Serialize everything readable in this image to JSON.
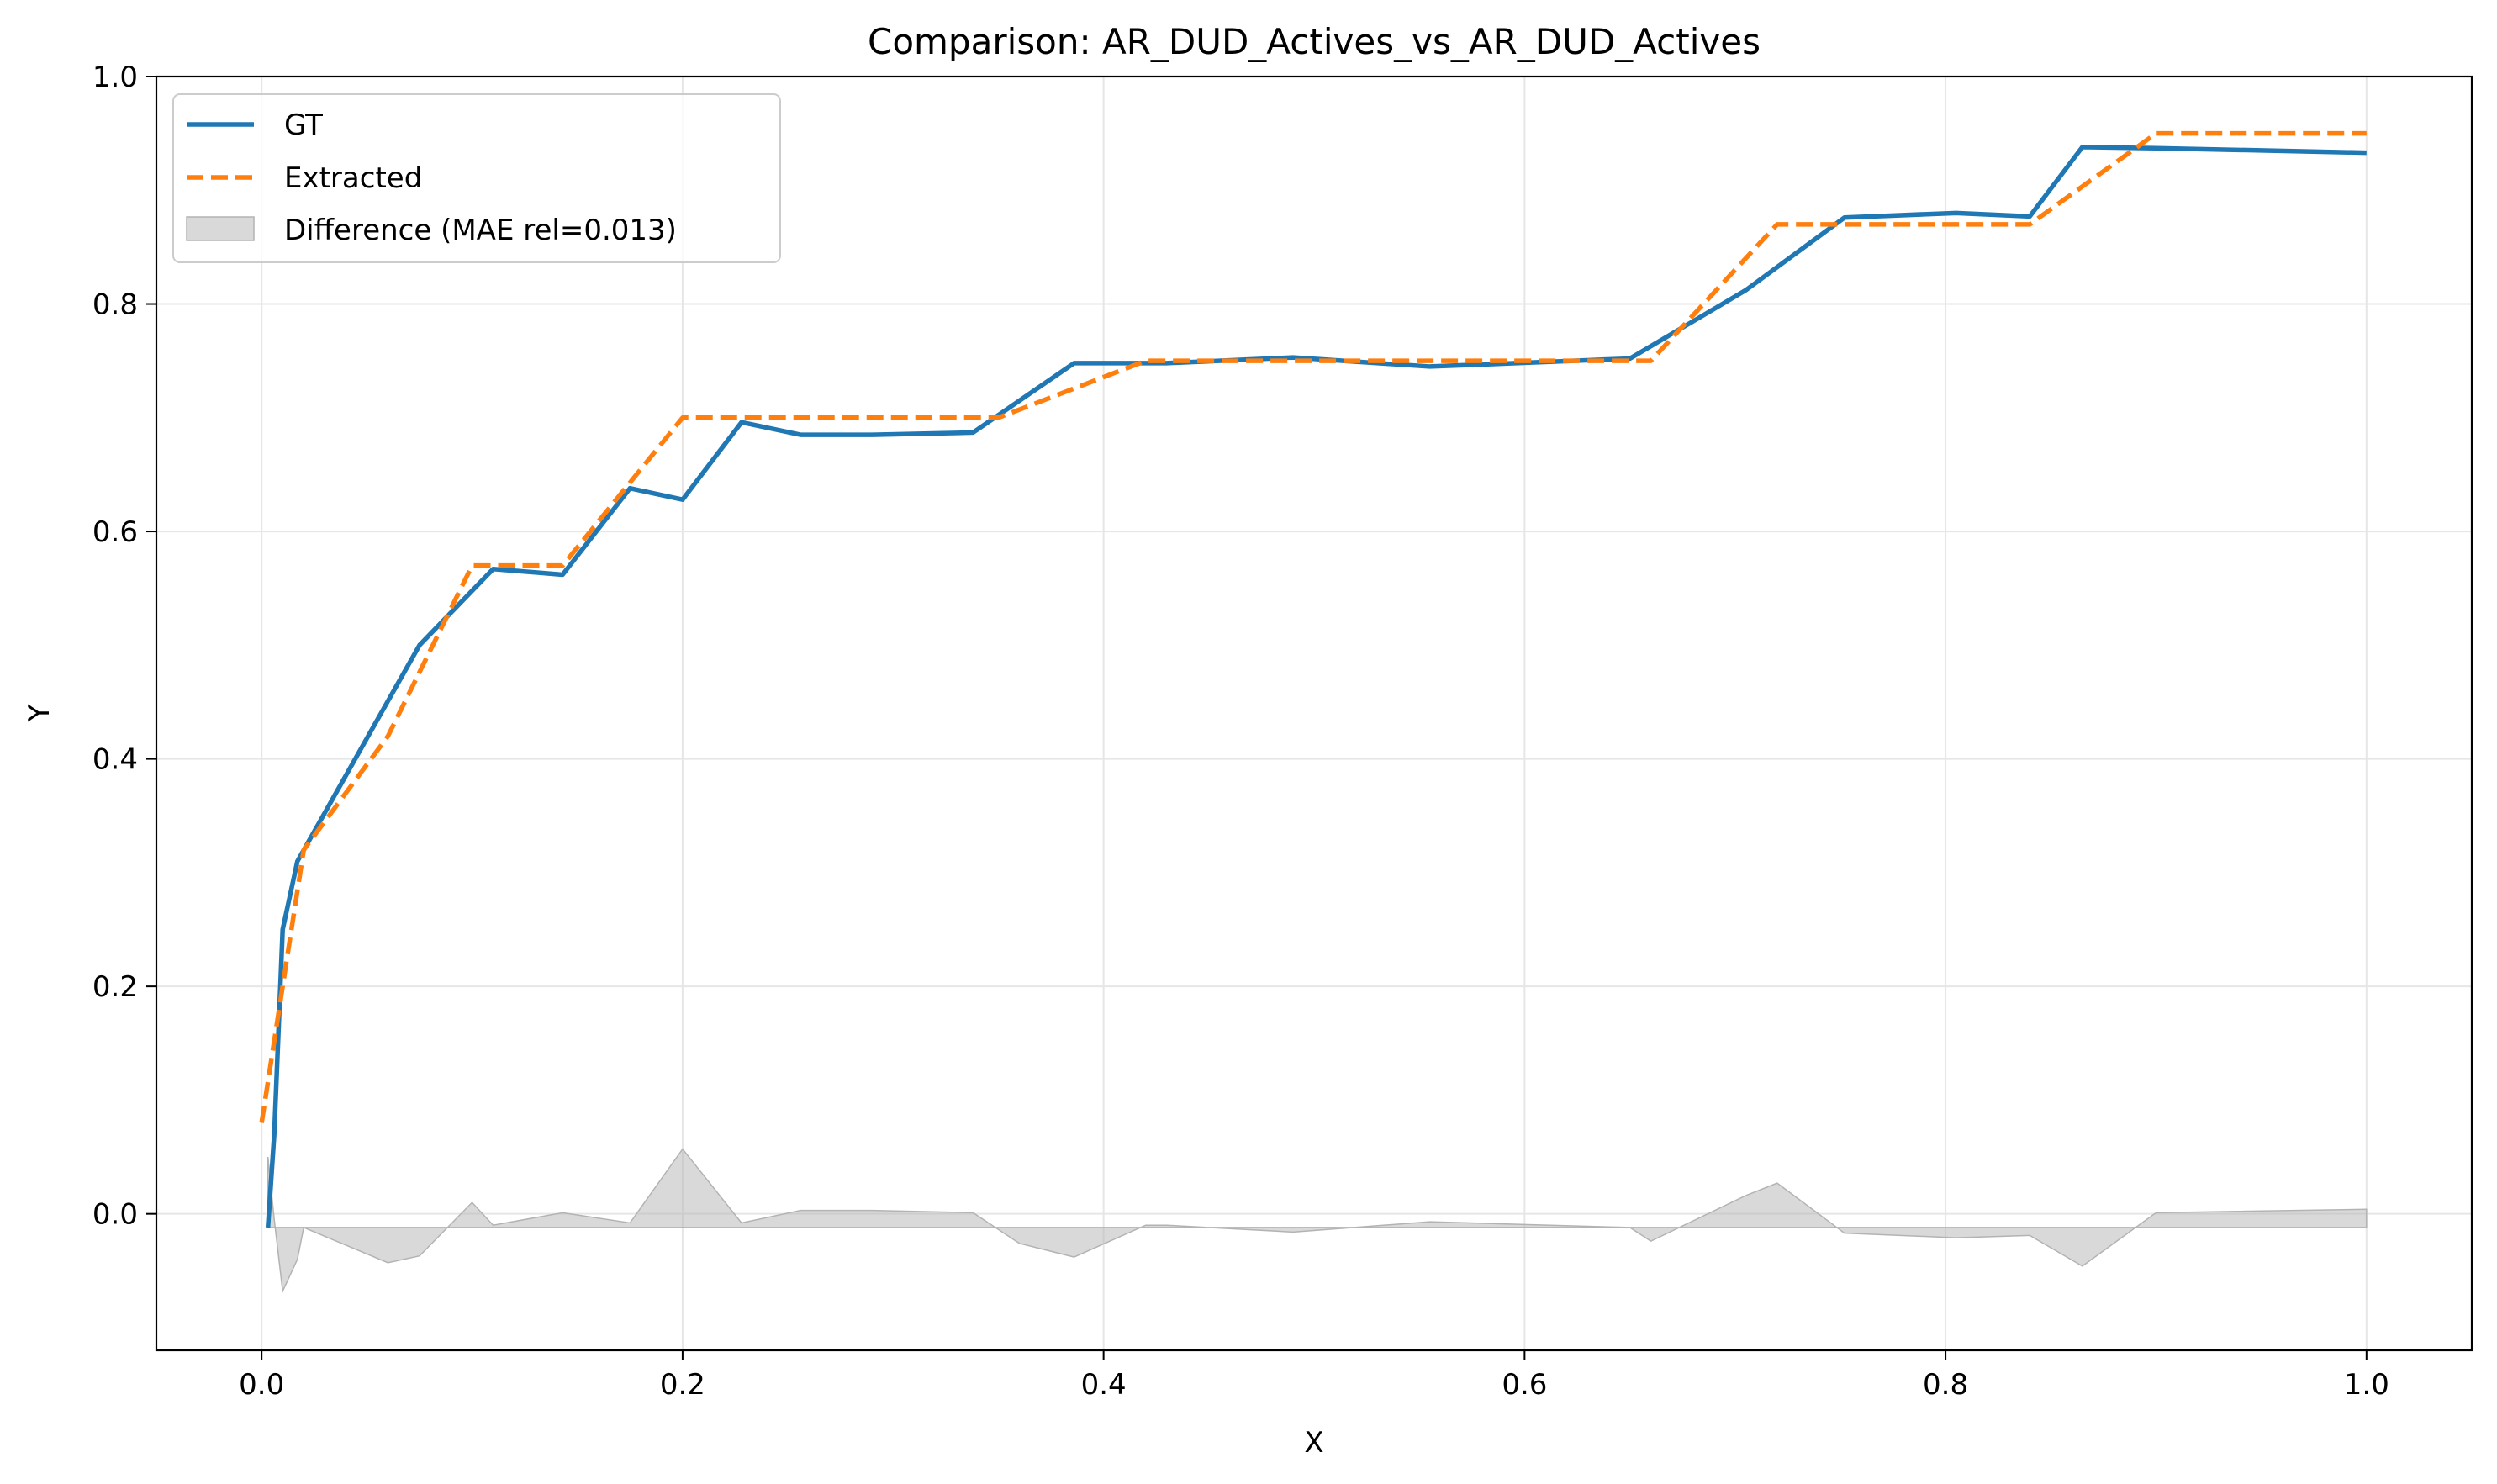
{
  "chart_data": {
    "type": "line",
    "title": "Comparison: AR_DUD_Actives_vs_AR_DUD_Actives",
    "xlabel": "X",
    "ylabel": "Y",
    "xlim": [
      -0.05,
      1.05
    ],
    "ylim": [
      -0.12,
      1.0
    ],
    "xticks": [
      0.0,
      0.2,
      0.4,
      0.6,
      0.8,
      1.0
    ],
    "xtick_labels": [
      "0.0",
      "0.2",
      "0.4",
      "0.6",
      "0.8",
      "1.0"
    ],
    "yticks": [
      0.0,
      0.2,
      0.4,
      0.6,
      0.8,
      1.0
    ],
    "ytick_labels": [
      "0.0",
      "0.2",
      "0.4",
      "0.6",
      "0.8",
      "1.0"
    ],
    "grid": true,
    "legend_position": "upper-left",
    "series": [
      {
        "name": "GT",
        "style": "solid",
        "color": "#1f77b4",
        "x": [
          0.003,
          0.006,
          0.01,
          0.017,
          0.075,
          0.11,
          0.143,
          0.175,
          0.2,
          0.228,
          0.256,
          0.29,
          0.338,
          0.386,
          0.43,
          0.49,
          0.555,
          0.65,
          0.705,
          0.752,
          0.805,
          0.84,
          0.865,
          0.9,
          1.0
        ],
        "values": [
          -0.012,
          0.07,
          0.25,
          0.31,
          0.5,
          0.567,
          0.562,
          0.638,
          0.628,
          0.696,
          0.685,
          0.685,
          0.687,
          0.748,
          0.748,
          0.753,
          0.745,
          0.752,
          0.812,
          0.876,
          0.88,
          0.877,
          0.938,
          0.937,
          0.933
        ]
      },
      {
        "name": "Extracted",
        "style": "dashed",
        "color": "#ff7f0e",
        "x": [
          0.0,
          0.01,
          0.02,
          0.06,
          0.1,
          0.143,
          0.2,
          0.35,
          0.42,
          0.66,
          0.72,
          0.84,
          0.9,
          1.0
        ],
        "values": [
          0.08,
          0.2,
          0.32,
          0.42,
          0.57,
          0.57,
          0.7,
          0.7,
          0.75,
          0.75,
          0.87,
          0.87,
          0.95,
          0.95
        ]
      }
    ],
    "difference": {
      "name": "Difference (MAE rel=0.013)",
      "color": "#b3b3b3",
      "baseline": -0.012,
      "x": [
        0.003,
        0.006,
        0.01,
        0.017,
        0.02,
        0.06,
        0.075,
        0.1,
        0.11,
        0.143,
        0.175,
        0.2,
        0.228,
        0.256,
        0.29,
        0.338,
        0.36,
        0.386,
        0.42,
        0.43,
        0.49,
        0.555,
        0.65,
        0.66,
        0.705,
        0.72,
        0.752,
        0.805,
        0.84,
        0.865,
        0.9,
        1.0
      ],
      "values": [
        0.05,
        -0.005,
        -0.068,
        -0.04,
        -0.012,
        -0.043,
        -0.037,
        0.01,
        -0.01,
        0.001,
        -0.008,
        0.057,
        -0.008,
        0.003,
        0.003,
        0.001,
        -0.026,
        -0.038,
        -0.01,
        -0.01,
        -0.016,
        -0.007,
        -0.012,
        -0.024,
        0.016,
        0.027,
        -0.017,
        -0.021,
        -0.019,
        -0.046,
        0.001,
        0.004
      ]
    }
  }
}
